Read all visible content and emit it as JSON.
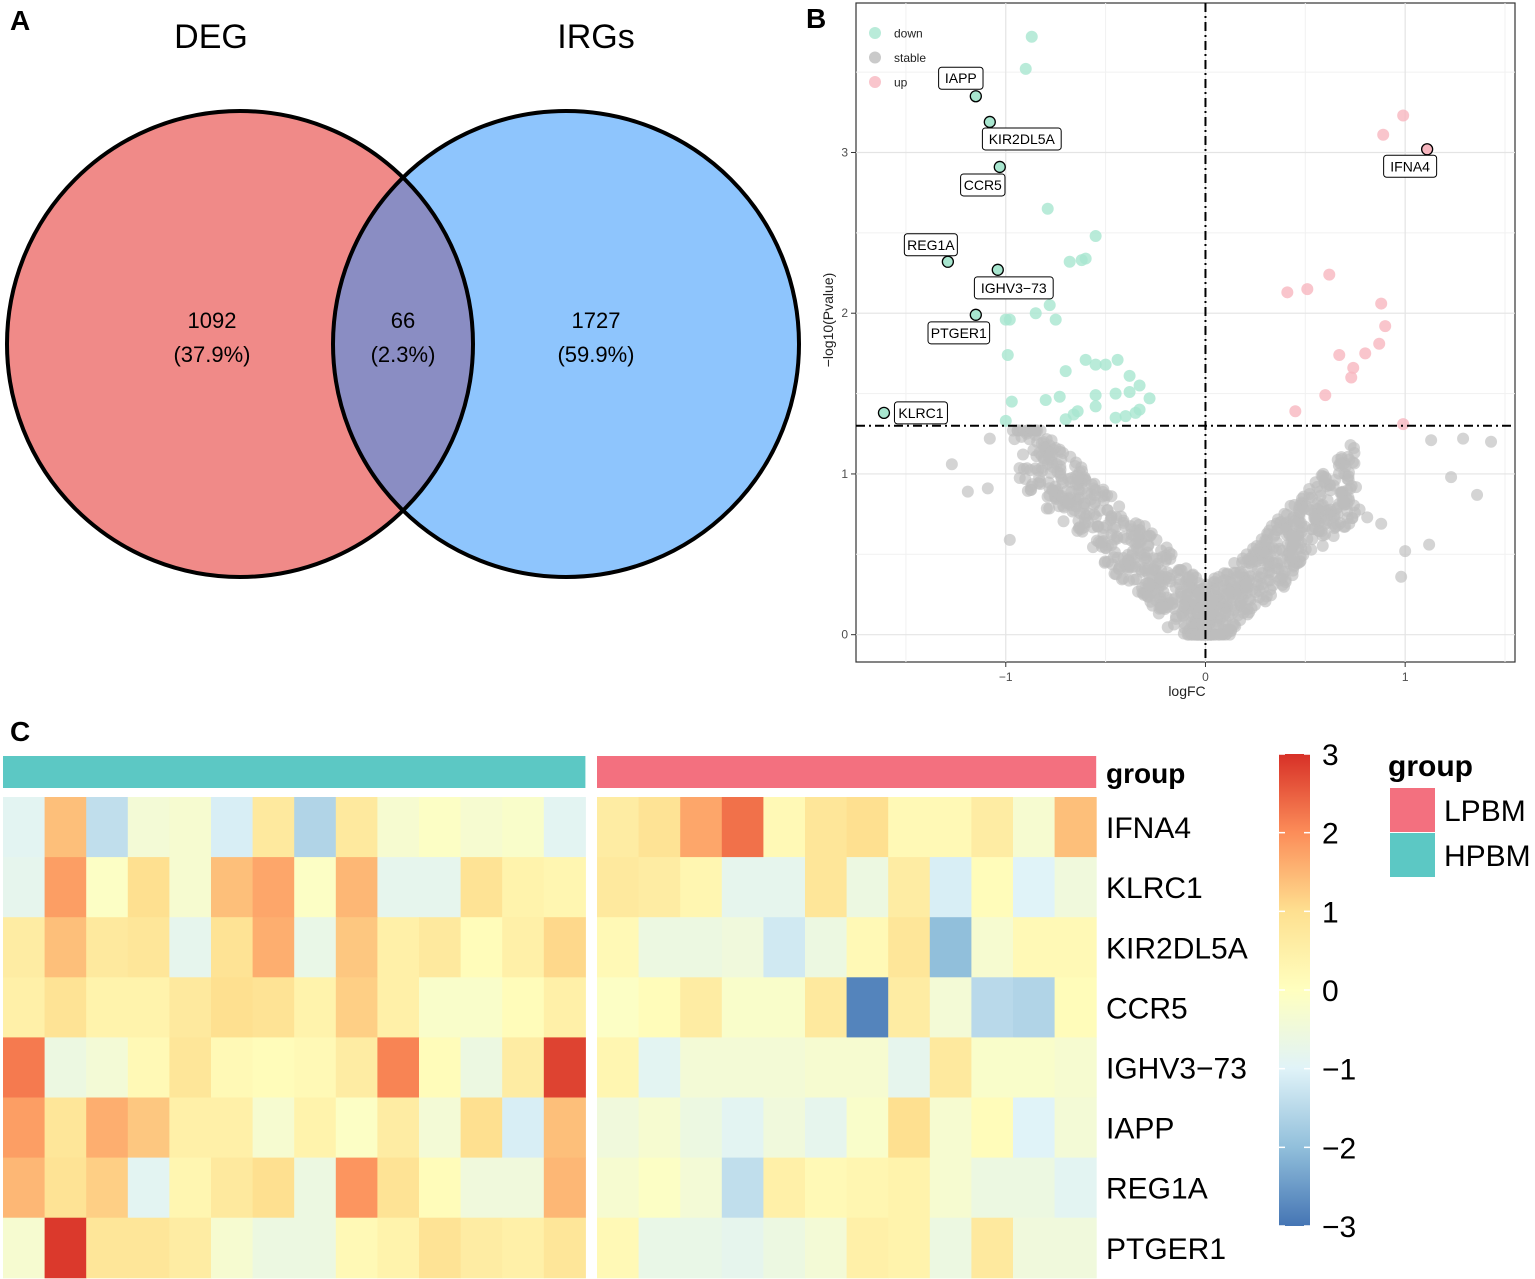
{
  "panels": {
    "a": "A",
    "b": "B",
    "c": "C"
  },
  "chart_data": [
    {
      "type": "venn",
      "sets": [
        {
          "name": "DEG",
          "color": "#F08A88"
        },
        {
          "name": "IRGs",
          "color": "#8EC5FD"
        }
      ],
      "overlap_color": "#8A8DC3",
      "regions": [
        {
          "set": "DEG only",
          "count": "1092",
          "pct": "(37.9%)"
        },
        {
          "set": "overlap",
          "count": "66",
          "pct": "(2.3%)"
        },
        {
          "set": "IRGs only",
          "count": "1727",
          "pct": "(59.9%)"
        }
      ]
    },
    {
      "type": "scatter",
      "title": "",
      "xlabel": "logFC",
      "ylabel": "−log10(Pvalue)",
      "xlim": [
        -1.75,
        1.55
      ],
      "ylim": [
        -0.17,
        3.93
      ],
      "xticks": [
        -1,
        0,
        1
      ],
      "yticks": [
        0,
        1,
        2,
        3
      ],
      "tick_labels_x": [
        "−1",
        "0",
        "1"
      ],
      "tick_labels_y": [
        "0",
        "1",
        "2",
        "3"
      ],
      "thresholds": {
        "logFC": 0,
        "pvalue_log": 1.3
      },
      "legend": {
        "position": "top-left",
        "entries": [
          {
            "name": "down",
            "color": "#A8E6CF"
          },
          {
            "name": "stable",
            "color": "#BDBDBD"
          },
          {
            "name": "up",
            "color": "#F7B6BF"
          }
        ]
      },
      "labeled_points": [
        {
          "gene": "IAPP",
          "x": -1.15,
          "y": 3.35,
          "group": "down"
        },
        {
          "gene": "KIR2DL5A",
          "x": -1.08,
          "y": 3.19,
          "group": "down"
        },
        {
          "gene": "CCR5",
          "x": -1.03,
          "y": 2.91,
          "group": "down"
        },
        {
          "gene": "REG1A",
          "x": -1.29,
          "y": 2.32,
          "group": "down"
        },
        {
          "gene": "IGHV3−73",
          "x": -1.04,
          "y": 2.27,
          "group": "down"
        },
        {
          "gene": "PTGER1",
          "x": -1.15,
          "y": 1.99,
          "group": "down"
        },
        {
          "gene": "KLRC1",
          "x": -1.61,
          "y": 1.38,
          "group": "down"
        },
        {
          "gene": "IFNA4",
          "x": 1.11,
          "y": 3.02,
          "group": "up"
        }
      ],
      "down_points": [
        [
          -0.87,
          3.72
        ],
        [
          -0.9,
          3.52
        ],
        [
          -0.79,
          2.65
        ],
        [
          -0.55,
          2.48
        ],
        [
          -0.6,
          2.34
        ],
        [
          -0.68,
          2.32
        ],
        [
          -0.62,
          2.33
        ],
        [
          -0.78,
          2.05
        ],
        [
          -0.98,
          1.96
        ],
        [
          -1.0,
          1.96
        ],
        [
          -0.85,
          2.0
        ],
        [
          -0.75,
          1.96
        ],
        [
          -0.99,
          1.74
        ],
        [
          -0.7,
          1.64
        ],
        [
          -0.6,
          1.71
        ],
        [
          -0.55,
          1.68
        ],
        [
          -0.5,
          1.68
        ],
        [
          -0.44,
          1.71
        ],
        [
          -0.38,
          1.61
        ],
        [
          -0.33,
          1.55
        ],
        [
          -0.38,
          1.51
        ],
        [
          -0.45,
          1.5
        ],
        [
          -0.55,
          1.49
        ],
        [
          -0.73,
          1.48
        ],
        [
          -0.8,
          1.46
        ],
        [
          -0.97,
          1.45
        ],
        [
          -0.28,
          1.47
        ],
        [
          -0.33,
          1.4
        ],
        [
          -0.35,
          1.38
        ],
        [
          -0.4,
          1.36
        ],
        [
          -0.45,
          1.35
        ],
        [
          -0.55,
          1.42
        ],
        [
          -0.64,
          1.39
        ],
        [
          -0.66,
          1.37
        ],
        [
          -0.7,
          1.34
        ],
        [
          -1.0,
          1.33
        ]
      ],
      "up_points": [
        [
          0.99,
          3.23
        ],
        [
          0.89,
          3.11
        ],
        [
          0.62,
          2.24
        ],
        [
          0.51,
          2.15
        ],
        [
          0.41,
          2.13
        ],
        [
          0.88,
          2.06
        ],
        [
          0.9,
          1.92
        ],
        [
          0.87,
          1.81
        ],
        [
          0.8,
          1.75
        ],
        [
          0.67,
          1.74
        ],
        [
          0.74,
          1.66
        ],
        [
          0.73,
          1.6
        ],
        [
          0.6,
          1.49
        ],
        [
          0.45,
          1.39
        ],
        [
          0.99,
          1.31
        ]
      ]
    },
    {
      "type": "heatmap",
      "rows": [
        "IFNA4",
        "KLRC1",
        "KIR2DL5A",
        "CCR5",
        "IGHV3−73",
        "IAPP",
        "REG1A",
        "PTGER1"
      ],
      "annotation_title": "group",
      "groups": [
        {
          "name": "HPBM",
          "color": "#5CC8C4",
          "n": 14
        },
        {
          "name": "LPBM",
          "color": "#F3707F",
          "n": 12
        }
      ],
      "legend_order": [
        "LPBM",
        "HPBM"
      ],
      "color_scale": {
        "min": -3,
        "max": 3,
        "ticks": [
          "3",
          "2",
          "1",
          "0",
          "−1",
          "−2",
          "−3"
        ]
      },
      "values": [
        [
          -0.9,
          1.4,
          -1.4,
          -0.4,
          -0.3,
          -1.1,
          0.7,
          -1.6,
          0.7,
          -0.3,
          -0.1,
          -0.3,
          -0.2,
          -0.9,
          0.6,
          0.9,
          1.7,
          2.3,
          0.2,
          0.8,
          1.0,
          0.2,
          0.2,
          0.6,
          -0.3,
          1.4
        ],
        [
          -0.8,
          1.8,
          -0.1,
          1.0,
          -0.3,
          1.4,
          1.7,
          -0.1,
          1.5,
          -0.8,
          -0.8,
          0.9,
          0.4,
          0.3,
          0.7,
          0.6,
          0.3,
          -0.8,
          -0.8,
          0.8,
          -0.6,
          0.6,
          -1.1,
          0.1,
          -1.0,
          -0.5
        ],
        [
          0.6,
          1.4,
          0.7,
          0.8,
          -0.8,
          0.9,
          1.6,
          -0.7,
          1.3,
          0.5,
          0.7,
          0.1,
          0.5,
          1.1,
          0.2,
          -0.6,
          -0.6,
          -0.5,
          -1.2,
          -0.6,
          0.2,
          0.8,
          -2.0,
          -0.3,
          0.2,
          0.2
        ],
        [
          0.5,
          0.9,
          0.4,
          0.4,
          0.7,
          1.0,
          0.9,
          0.4,
          1.2,
          0.5,
          -0.2,
          -0.2,
          0.1,
          0.5,
          -0.1,
          0.1,
          0.6,
          -0.2,
          -0.2,
          0.7,
          -2.8,
          0.6,
          -0.4,
          -1.5,
          -1.6,
          0.1
        ],
        [
          2.2,
          -0.6,
          -0.4,
          0.2,
          0.8,
          0.2,
          0.1,
          0.2,
          0.6,
          2.1,
          0.1,
          -0.6,
          0.6,
          2.8,
          0.3,
          -0.9,
          -0.4,
          -0.4,
          -0.4,
          -0.3,
          -0.3,
          -0.8,
          0.7,
          -0.2,
          -0.2,
          -0.3
        ],
        [
          1.8,
          0.8,
          1.6,
          1.3,
          0.5,
          0.5,
          -0.3,
          0.4,
          -0.1,
          0.6,
          -0.4,
          1.0,
          -1.1,
          1.4,
          -0.5,
          -0.3,
          -0.6,
          -0.9,
          -0.5,
          -0.8,
          -0.2,
          1.0,
          -0.3,
          0.1,
          -1.0,
          -0.4
        ],
        [
          1.5,
          0.9,
          1.2,
          -0.9,
          0.3,
          0.7,
          1.0,
          -0.6,
          1.9,
          0.9,
          0.1,
          -0.5,
          -0.5,
          1.5,
          -0.3,
          -0.1,
          -0.4,
          -1.4,
          0.5,
          0.2,
          0.3,
          0.4,
          -0.3,
          -0.6,
          -0.6,
          -0.9
        ],
        [
          -0.3,
          2.9,
          0.8,
          0.8,
          0.6,
          -0.3,
          -0.6,
          -0.6,
          0.2,
          0.4,
          0.9,
          0.6,
          0.5,
          0.8,
          0.2,
          -0.7,
          -0.7,
          -0.8,
          -0.6,
          -0.4,
          0.5,
          0.4,
          -0.6,
          0.7,
          -0.5,
          -0.5
        ]
      ]
    }
  ]
}
